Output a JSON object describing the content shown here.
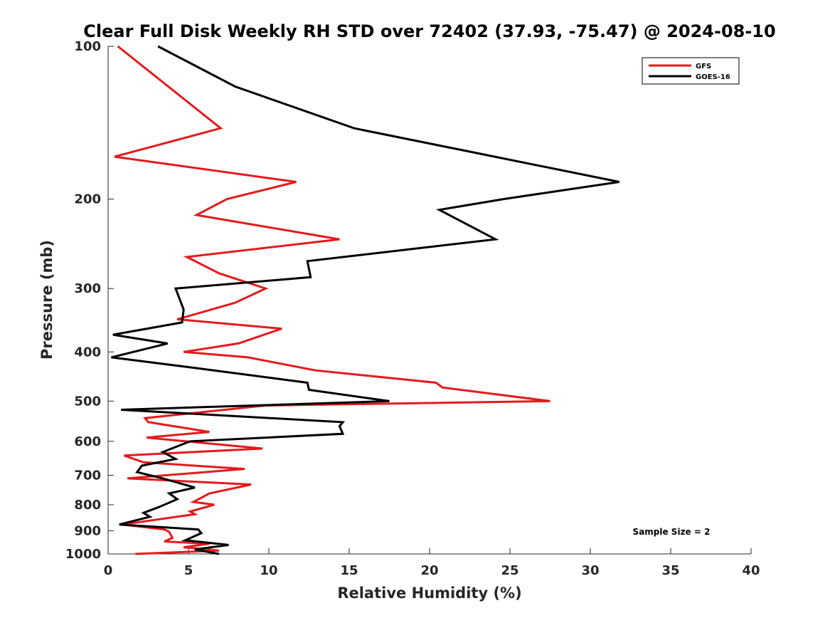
{
  "chart_data": {
    "type": "line",
    "title": "Clear Full Disk Weekly RH STD over 72402 (37.93, -75.47) @ 2024-08-10",
    "xlabel": "Relative Humidity (%)",
    "ylabel": "Pressure (mb)",
    "xlim": [
      0,
      40
    ],
    "ylim": [
      1000,
      100
    ],
    "yscale": "log",
    "x_ticks": [
      "0",
      "5",
      "10",
      "15",
      "20",
      "25",
      "30",
      "35",
      "40"
    ],
    "y_ticks": [
      "100",
      "200",
      "300",
      "400",
      "500",
      "600",
      "700",
      "800",
      "900",
      "1000"
    ],
    "legend_position": "top-right",
    "annotation": "Sample Size = 2",
    "series": [
      {
        "name": "GFS",
        "color": "#e41a1c",
        "x": [
          0.6,
          7.0,
          0.4,
          11.7,
          7.4,
          5.5,
          14.4,
          4.9,
          6.9,
          9.8,
          7.9,
          4.3,
          10.8,
          8.1,
          4.7,
          8.7,
          12.9,
          20.4,
          20.8,
          27.5,
          9.8,
          2.3,
          2.5,
          6.3,
          2.4,
          9.6,
          1.0,
          2.2,
          8.5,
          1.2,
          8.9,
          6.3,
          5.3,
          6.6,
          5.1,
          5.4,
          0.9,
          3.5,
          3.8,
          4.0,
          3.5,
          6.3,
          4.7,
          6.9,
          1.7
        ],
        "y": [
          100,
          145,
          165,
          185,
          200,
          215,
          240,
          260,
          280,
          300,
          320,
          345,
          360,
          385,
          400,
          410,
          435,
          460,
          470,
          500,
          510,
          540,
          550,
          575,
          590,
          620,
          640,
          660,
          680,
          710,
          730,
          760,
          790,
          800,
          825,
          835,
          875,
          895,
          905,
          930,
          945,
          955,
          970,
          985,
          1000
        ]
      },
      {
        "name": "GOES-16",
        "color": "#000000",
        "x": [
          3.1,
          7.9,
          15.3,
          31.8,
          24.6,
          20.6,
          24.1,
          12.4,
          12.6,
          4.2,
          4.7,
          4.6,
          0.3,
          3.7,
          0.2,
          5.4,
          12.4,
          12.5,
          17.5,
          0.8,
          14.6,
          14.4,
          14.6,
          5.1,
          3.4,
          4.2,
          2.1,
          1.8,
          3.4,
          5.4,
          3.8,
          4.3,
          3.1,
          2.2,
          2.6,
          0.7,
          5.6,
          5.8,
          4.8,
          7.5,
          5.4,
          6.9
        ],
        "y": [
          100,
          120,
          145,
          185,
          200,
          210,
          240,
          265,
          285,
          300,
          330,
          350,
          370,
          385,
          410,
          430,
          460,
          475,
          500,
          520,
          550,
          560,
          580,
          600,
          630,
          650,
          670,
          690,
          710,
          740,
          760,
          780,
          810,
          830,
          845,
          875,
          895,
          910,
          940,
          960,
          980,
          1000
        ]
      }
    ]
  }
}
